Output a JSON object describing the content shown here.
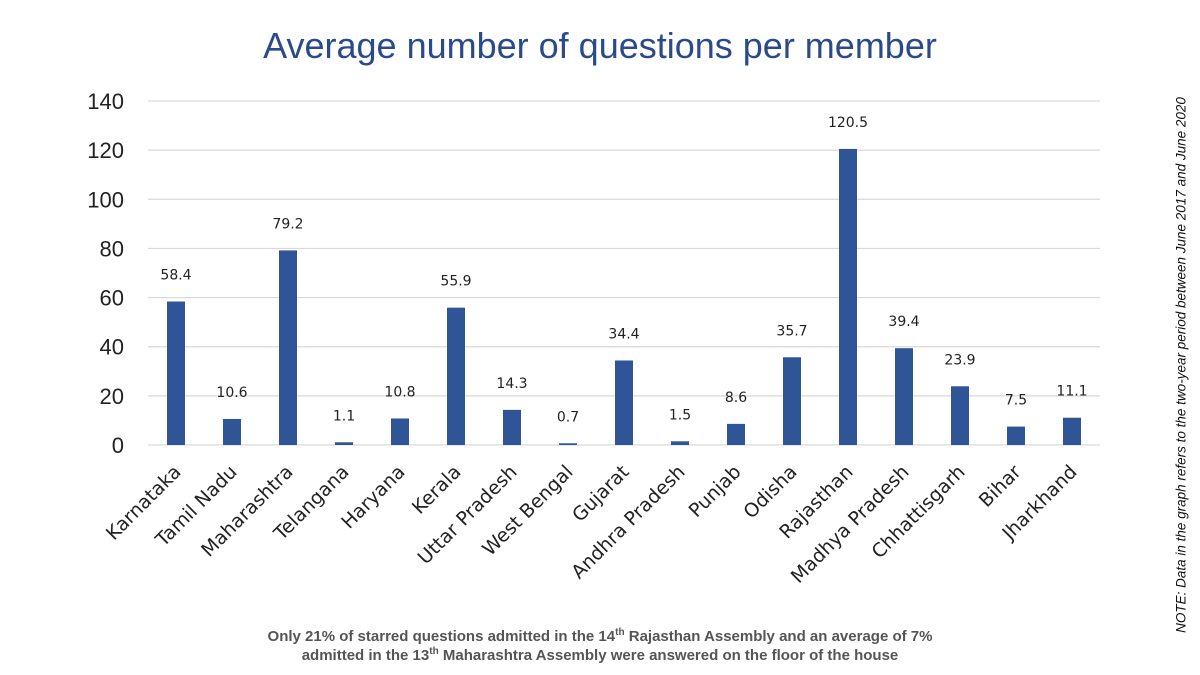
{
  "chart_data": {
    "type": "bar",
    "title": "Average number of questions per member",
    "xlabel": "",
    "ylabel": "",
    "ylim": [
      0,
      140
    ],
    "yticks": [
      0,
      20,
      40,
      60,
      80,
      100,
      120,
      140
    ],
    "grid": true,
    "bar_color": "#2f5597",
    "grid_color": "#d9d9d9",
    "title_color": "#2b4a8b",
    "categories": [
      "Karnataka",
      "Tamil Nadu",
      "Maharashtra",
      "Telangana",
      "Haryana",
      "Kerala",
      "Uttar Pradesh",
      "West Bengal",
      "Gujarat",
      "Andhra Pradesh",
      "Punjab",
      "Odisha",
      "Rajasthan",
      "Madhya Pradesh",
      "Chhattisgarh",
      "Bihar",
      "Jharkhand"
    ],
    "values": [
      58.4,
      10.6,
      79.2,
      1.1,
      10.8,
      55.9,
      14.3,
      0.7,
      34.4,
      1.5,
      8.6,
      35.7,
      120.5,
      39.4,
      23.9,
      7.5,
      11.1
    ],
    "data_labels": [
      "58.4",
      "10.6",
      "79.2",
      "1.1",
      "10.8",
      "55.9",
      "14.3",
      "0.7",
      "34.4",
      "1.5",
      "8.6",
      "35.7",
      "120.5",
      "39.4",
      "23.9",
      "7.5",
      "11.1"
    ]
  },
  "caption": {
    "line1_a": "Only 21% of starred questions admitted in the 14",
    "line1_sup": "th",
    "line1_b": " Rajasthan Assembly and an average of 7%",
    "line2_a": "admitted in the 13",
    "line2_sup": "th",
    "line2_b": " Maharashtra Assembly were answered on the floor of the house"
  },
  "note": "NOTE: Data in the graph refers to the two-year period between June 2017 and June 2020"
}
